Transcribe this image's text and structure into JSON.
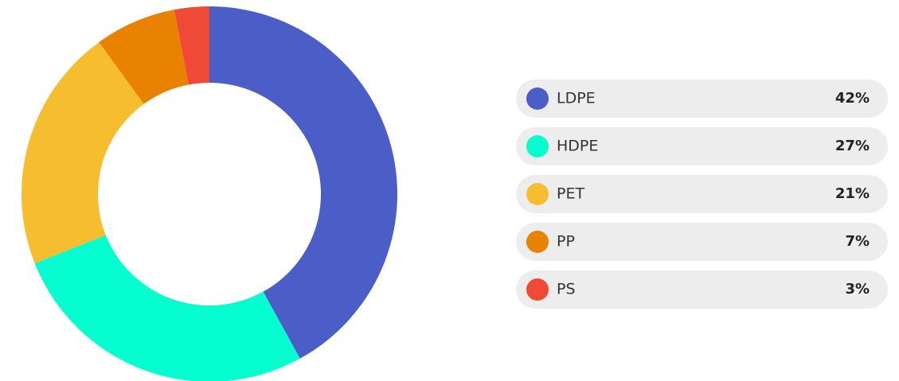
{
  "chart_data": {
    "type": "pie",
    "categories": [
      "LDPE",
      "HDPE",
      "PET",
      "PP",
      "PS"
    ],
    "values": [
      42,
      27,
      21,
      7,
      3
    ],
    "value_labels": [
      "42%",
      "27%",
      "21%",
      "7%",
      "3%"
    ],
    "colors": [
      "#4b5dc7",
      "#05fdcf",
      "#f6bd2f",
      "#e88200",
      "#f04a37"
    ],
    "donut": true,
    "legend": "right"
  }
}
